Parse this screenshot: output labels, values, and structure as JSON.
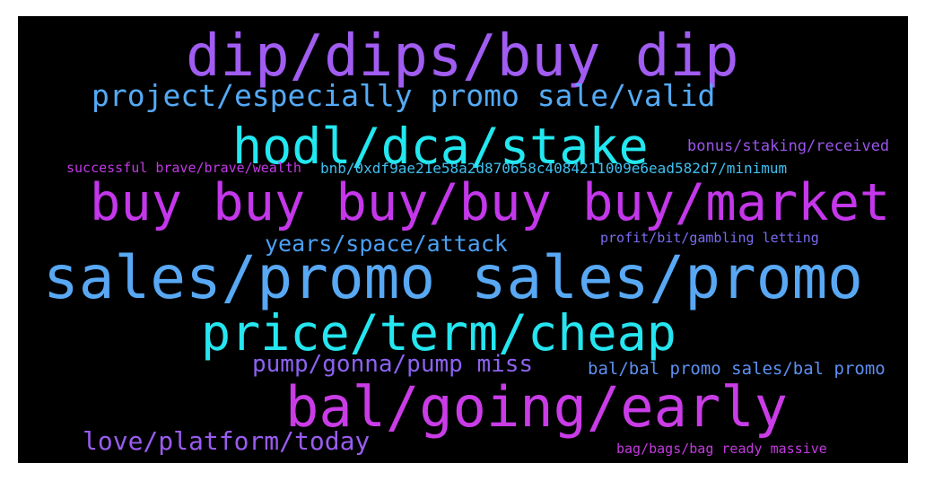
{
  "words": [
    {
      "text": "dip/dips/buy dip",
      "color": "#a15cf2"
    },
    {
      "text": "project/especially promo sale/valid",
      "color": "#54aaf5"
    },
    {
      "text": "hodl/dca/stake",
      "color": "#22e8f0"
    },
    {
      "text": "bonus/staking/received",
      "color": "#9a55ea"
    },
    {
      "text": "successful brave/brave/wealth",
      "color": "#c13ae6"
    },
    {
      "text": "bnb/0xdf9ae21e58a2d870658c4084211009e6ead582d7/minimum",
      "color": "#3fc0ef"
    },
    {
      "text": "buy buy buy/buy buy/market",
      "color": "#c437ea"
    },
    {
      "text": "years/space/attack",
      "color": "#4ba0f4"
    },
    {
      "text": "profit/bit/gambling letting",
      "color": "#7a6cf0"
    },
    {
      "text": "sales/promo sales/promo",
      "color": "#58a8f4"
    },
    {
      "text": "price/term/cheap",
      "color": "#25e6f0"
    },
    {
      "text": "pump/gonna/pump miss",
      "color": "#8c62f0"
    },
    {
      "text": "bal/bal promo sales/bal promo",
      "color": "#5e90f2"
    },
    {
      "text": "bal/going/early",
      "color": "#c93ce6"
    },
    {
      "text": "love/platform/today",
      "color": "#9a5cf0"
    },
    {
      "text": "bag/bags/bag ready massive",
      "color": "#c43ae0"
    }
  ]
}
